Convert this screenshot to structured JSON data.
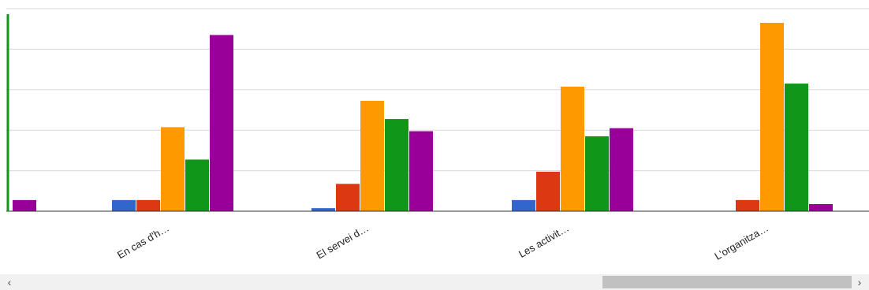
{
  "chart_data": {
    "type": "bar",
    "categories": [
      "En cas d'h…",
      "El servei d…",
      "Les activit…",
      "L'organitza…"
    ],
    "first_group_partial": [
      {
        "color": "#990099",
        "value": 0.55
      }
    ],
    "series": [
      {
        "color": "#3366cc",
        "values": [
          0.55,
          0.15,
          0.55,
          0
        ]
      },
      {
        "color": "#dc3912",
        "values": [
          0.55,
          1.35,
          1.95,
          0.55
        ]
      },
      {
        "color": "#ff9900",
        "values": [
          4.15,
          5.45,
          6.15,
          9.3
        ]
      },
      {
        "color": "#109618",
        "values": [
          2.55,
          4.55,
          3.7,
          6.3
        ]
      },
      {
        "color": "#990099",
        "values": [
          8.7,
          3.95,
          4.1,
          0.35
        ]
      }
    ],
    "ylim": [
      0,
      10
    ],
    "grid": true,
    "x_label_rotation": -30,
    "colors": {
      "gridline": "#d9d9d9",
      "baseline": "#333333",
      "accent_axis": "#109618"
    }
  },
  "scrollbar": {
    "left_arrow": "‹",
    "right_arrow": "›"
  }
}
